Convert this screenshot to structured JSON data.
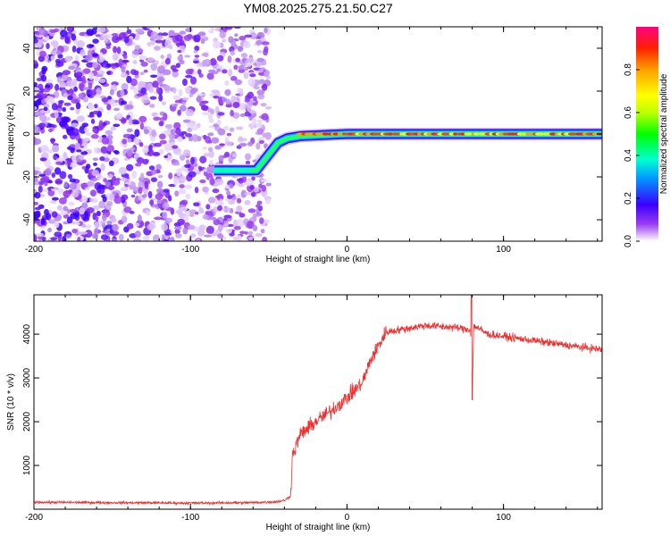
{
  "title": "YM08.2025.275.21.50.C27",
  "chart_data": [
    {
      "type": "heatmap",
      "name": "spectrogram",
      "xlabel": "Height of straight line (km)",
      "ylabel": "Frequency (Hz)",
      "xlim": [
        -200,
        163
      ],
      "ylim": [
        -50,
        50
      ],
      "xticks": [
        -200,
        -100,
        0,
        100
      ],
      "yticks": [
        -40,
        -20,
        0,
        20,
        40
      ],
      "ridge": {
        "description": "narrow high-amplitude frequency trace",
        "points": [
          [
            -85,
            -17
          ],
          [
            -58,
            -17
          ],
          [
            -44,
            -4
          ],
          [
            -38,
            -2
          ],
          [
            -30,
            -1
          ],
          [
            0,
            0
          ],
          [
            163,
            0
          ]
        ]
      },
      "noise_region_xmax": -50,
      "colorbar": {
        "label": "Normalized spectral amplitude",
        "range": [
          0,
          1
        ],
        "ticks": [
          0.0,
          0.2,
          0.4,
          0.6,
          0.8
        ],
        "tick_labels": [
          "0.0",
          "0.2",
          "0.4",
          "0.6",
          "0.8"
        ],
        "colors": [
          "#ffffff",
          "#9a3cf0",
          "#3a00ff",
          "#00a0ff",
          "#00ffd0",
          "#00ff00",
          "#c0ff00",
          "#ffff00",
          "#ffa000",
          "#ff2000",
          "#ff0080"
        ]
      }
    },
    {
      "type": "line",
      "name": "snr",
      "xlabel": "Height of straight line (km)",
      "ylabel": "SNR (10 * v/v)",
      "xlim": [
        -200,
        163
      ],
      "ylim": [
        0,
        4900
      ],
      "xticks": [
        -200,
        -100,
        0,
        100
      ],
      "yticks": [
        1000,
        2000,
        3000,
        4000
      ],
      "color": "#ee3030",
      "series": [
        {
          "name": "SNR",
          "x": [
            -200,
            -150,
            -100,
            -60,
            -45,
            -40,
            -36,
            -35,
            -30,
            -20,
            -10,
            0,
            10,
            15,
            25,
            50,
            70,
            79,
            80,
            81,
            90,
            110,
            130,
            150,
            163
          ],
          "y": [
            160,
            150,
            140,
            150,
            170,
            200,
            300,
            1200,
            1700,
            2000,
            2250,
            2550,
            2900,
            3400,
            4050,
            4200,
            4150,
            4100,
            2500,
            4200,
            4000,
            3900,
            3800,
            3700,
            3650
          ]
        }
      ]
    }
  ]
}
